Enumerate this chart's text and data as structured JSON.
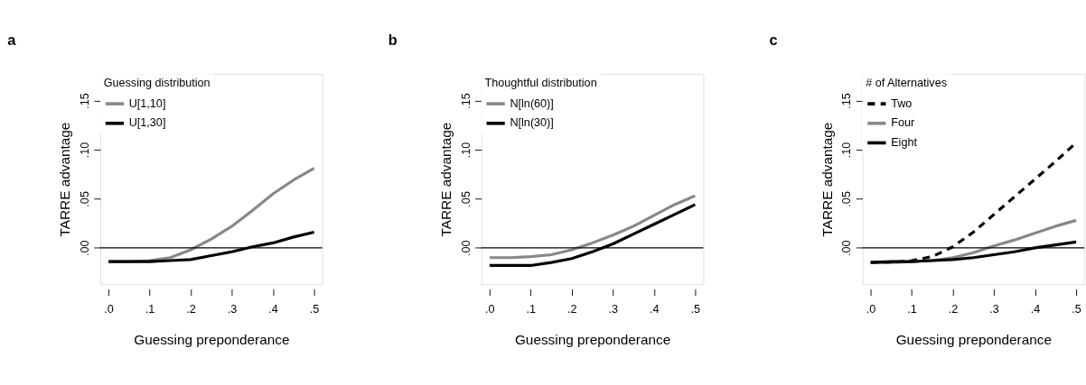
{
  "chart_data": [
    {
      "type": "line",
      "title": "a",
      "xlabel": "Guessing preponderance",
      "ylabel": "TARRE advantage",
      "legend_title": "Guessing distribution",
      "legend": "top left",
      "grid": false,
      "line_style": "solid",
      "marker": "none",
      "x": [
        0,
        0.05,
        0.1,
        0.15,
        0.2,
        0.25,
        0.3,
        0.35,
        0.4,
        0.45,
        0.5
      ],
      "xlim": [
        -0.02,
        0.52
      ],
      "xticks": [
        {
          "value": 0,
          "label": ".0"
        },
        {
          "value": 0.1,
          "label": ".1"
        },
        {
          "value": 0.2,
          "label": ".2"
        },
        {
          "value": 0.3,
          "label": ".3"
        },
        {
          "value": 0.4,
          "label": ".4"
        },
        {
          "value": 0.5,
          "label": ".5"
        }
      ],
      "ylim": [
        -0.037,
        0.177
      ],
      "yticks": [
        {
          "value": 0,
          "label": ".00"
        },
        {
          "value": 0.05,
          "label": ".05"
        },
        {
          "value": 0.1,
          "label": ".10"
        },
        {
          "value": 0.15,
          "label": ".15"
        }
      ],
      "ref_lines": [
        {
          "axis": "y",
          "value": 0,
          "color": "#000000"
        }
      ],
      "series": [
        {
          "name": "U[1,10]",
          "color": "#888888",
          "values": [
            -0.014,
            -0.014,
            -0.013,
            -0.01,
            -0.002,
            0.009,
            0.022,
            0.038,
            0.055,
            0.069,
            0.081
          ]
        },
        {
          "name": "U[1,30]",
          "color": "#000000",
          "values": [
            -0.014,
            -0.014,
            -0.014,
            -0.013,
            -0.012,
            -0.008,
            -0.004,
            0.001,
            0.005,
            0.011,
            0.016
          ]
        }
      ]
    },
    {
      "type": "line",
      "title": "b",
      "xlabel": "Guessing preponderance",
      "ylabel": "TARRE advantage",
      "legend_title": "Thoughtful distribution",
      "legend": "top left",
      "grid": false,
      "line_style": "solid",
      "marker": "none",
      "x": [
        0,
        0.05,
        0.1,
        0.15,
        0.2,
        0.25,
        0.3,
        0.35,
        0.4,
        0.45,
        0.5
      ],
      "xlim": [
        -0.02,
        0.52
      ],
      "xticks": [
        {
          "value": 0,
          "label": ".0"
        },
        {
          "value": 0.1,
          "label": ".1"
        },
        {
          "value": 0.2,
          "label": ".2"
        },
        {
          "value": 0.3,
          "label": ".3"
        },
        {
          "value": 0.4,
          "label": ".4"
        },
        {
          "value": 0.5,
          "label": ".5"
        }
      ],
      "ylim": [
        -0.037,
        0.177
      ],
      "yticks": [
        {
          "value": 0,
          "label": ".00"
        },
        {
          "value": 0.05,
          "label": ".05"
        },
        {
          "value": 0.1,
          "label": ".10"
        },
        {
          "value": 0.15,
          "label": ".15"
        }
      ],
      "ref_lines": [
        {
          "axis": "y",
          "value": 0,
          "color": "#000000"
        }
      ],
      "series": [
        {
          "name": "N[ln(60)]",
          "color": "#888888",
          "values": [
            -0.01,
            -0.01,
            -0.009,
            -0.007,
            -0.002,
            0.005,
            0.013,
            0.022,
            0.033,
            0.044,
            0.053
          ]
        },
        {
          "name": "N[ln(30)]",
          "color": "#000000",
          "values": [
            -0.018,
            -0.018,
            -0.018,
            -0.015,
            -0.011,
            -0.004,
            0.004,
            0.014,
            0.024,
            0.034,
            0.044
          ]
        }
      ]
    },
    {
      "type": "line",
      "title": "c",
      "xlabel": "Guessing preponderance",
      "ylabel": "TARRE advantage",
      "legend_title": "# of Alternatives",
      "legend": "top left",
      "grid": false,
      "marker": "none",
      "x": [
        0,
        0.05,
        0.1,
        0.15,
        0.2,
        0.25,
        0.3,
        0.35,
        0.4,
        0.45,
        0.5
      ],
      "xlim": [
        -0.02,
        0.52
      ],
      "xticks": [
        {
          "value": 0,
          "label": ".0"
        },
        {
          "value": 0.1,
          "label": ".1"
        },
        {
          "value": 0.2,
          "label": ".2"
        },
        {
          "value": 0.3,
          "label": ".3"
        },
        {
          "value": 0.4,
          "label": ".4"
        },
        {
          "value": 0.5,
          "label": ".5"
        }
      ],
      "ylim": [
        -0.037,
        0.177
      ],
      "yticks": [
        {
          "value": 0,
          "label": ".00"
        },
        {
          "value": 0.05,
          "label": ".05"
        },
        {
          "value": 0.1,
          "label": ".10"
        },
        {
          "value": 0.15,
          "label": ".15"
        }
      ],
      "ref_lines": [
        {
          "axis": "y",
          "value": 0,
          "color": "#000000"
        }
      ],
      "series": [
        {
          "name": "Two",
          "color": "#000000",
          "line_style": "dashed",
          "values": [
            -0.015,
            -0.015,
            -0.013,
            -0.009,
            0.001,
            0.016,
            0.034,
            0.052,
            0.07,
            0.088,
            0.107
          ]
        },
        {
          "name": "Four",
          "color": "#888888",
          "line_style": "solid",
          "values": [
            -0.015,
            -0.015,
            -0.014,
            -0.013,
            -0.01,
            -0.005,
            0.002,
            0.008,
            0.015,
            0.022,
            0.028
          ]
        },
        {
          "name": "Eight",
          "color": "#000000",
          "line_style": "solid",
          "values": [
            -0.015,
            -0.014,
            -0.014,
            -0.013,
            -0.012,
            -0.01,
            -0.007,
            -0.004,
            0.0,
            0.003,
            0.006
          ]
        }
      ]
    }
  ]
}
